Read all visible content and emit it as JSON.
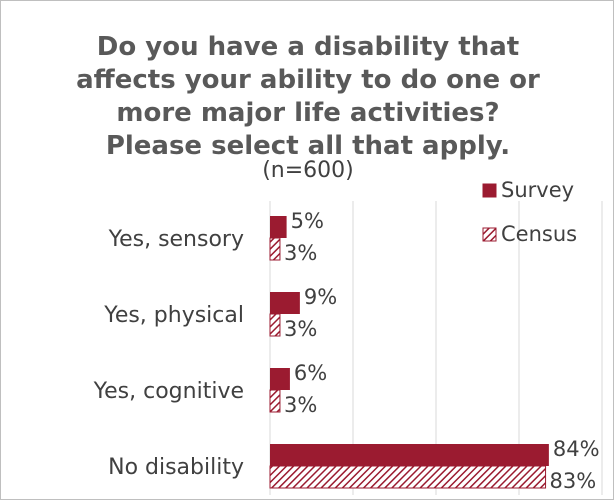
{
  "chart_data": {
    "type": "bar",
    "orientation": "horizontal",
    "title": "Do you have a disability that affects your ability to do one or more major life activities? Please select all that apply.",
    "title_lines": [
      "Do you have a disability that",
      "affects your ability to do one or",
      "more major life activities?",
      "Please select all that apply."
    ],
    "subtitle": "(n=600)",
    "categories": [
      "Yes, sensory",
      "Yes, physical",
      "Yes, cognitive",
      "No disability"
    ],
    "series": [
      {
        "name": "Survey",
        "values": [
          5,
          9,
          6,
          84
        ],
        "labels": [
          "5%",
          "9%",
          "6%",
          "84%"
        ],
        "color": "#9b1b30",
        "pattern": "solid"
      },
      {
        "name": "Census",
        "values": [
          3,
          3,
          3,
          83
        ],
        "labels": [
          "3%",
          "3%",
          "3%",
          "83%"
        ],
        "color": "#9b1b30",
        "pattern": "hatched"
      }
    ],
    "xlim": [
      0,
      100
    ],
    "grid": true,
    "legend_position": "top-right"
  }
}
